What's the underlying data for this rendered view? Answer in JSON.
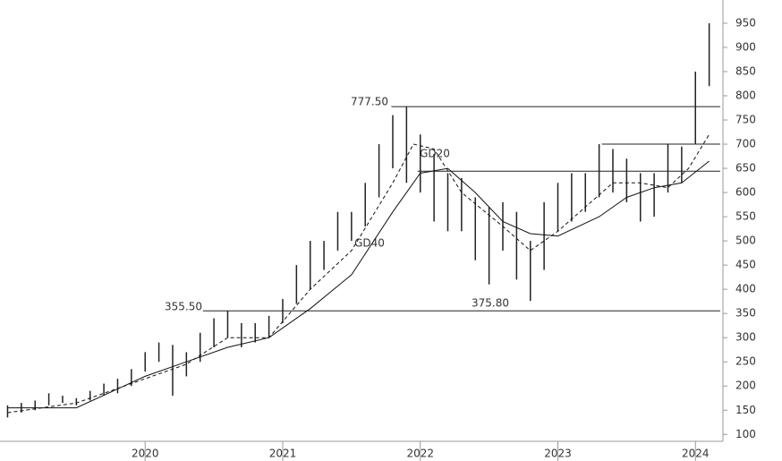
{
  "chart_data": {
    "type": "ohlc",
    "x": [
      2019.0,
      2019.1,
      2019.2,
      2019.3,
      2019.4,
      2019.5,
      2019.6,
      2019.7,
      2019.8,
      2019.9,
      2020.0,
      2020.1,
      2020.2,
      2020.3,
      2020.4,
      2020.5,
      2020.6,
      2020.7,
      2020.8,
      2020.9,
      2021.0,
      2021.1,
      2021.2,
      2021.3,
      2021.4,
      2021.5,
      2021.6,
      2021.7,
      2021.8,
      2021.9,
      2022.0,
      2022.1,
      2022.2,
      2022.3,
      2022.4,
      2022.5,
      2022.6,
      2022.7,
      2022.8,
      2022.9,
      2023.0,
      2023.1,
      2023.2,
      2023.3,
      2023.4,
      2023.5,
      2023.6,
      2023.7,
      2023.8,
      2023.9,
      2024.0,
      2024.1
    ],
    "low": [
      135,
      145,
      150,
      160,
      165,
      160,
      170,
      180,
      185,
      200,
      230,
      250,
      180,
      220,
      250,
      280,
      300,
      280,
      290,
      300,
      330,
      370,
      400,
      440,
      480,
      500,
      530,
      590,
      650,
      620,
      600,
      540,
      520,
      520,
      460,
      410,
      480,
      420,
      375.8,
      440,
      520,
      540,
      560,
      590,
      600,
      580,
      540,
      550,
      600,
      620,
      700,
      820
    ],
    "high": [
      160,
      165,
      170,
      185,
      180,
      175,
      190,
      205,
      215,
      235,
      270,
      290,
      285,
      270,
      310,
      340,
      355.5,
      330,
      330,
      345,
      380,
      450,
      500,
      500,
      560,
      560,
      620,
      700,
      760,
      777.5,
      720,
      680,
      640,
      630,
      590,
      570,
      580,
      560,
      500,
      580,
      620,
      640,
      640,
      700,
      690,
      670,
      640,
      640,
      700,
      695,
      850,
      950
    ],
    "series": [
      {
        "name": "GD20",
        "dashed": true,
        "x": [
          2019.0,
          2019.5,
          2020.0,
          2020.3,
          2020.6,
          2020.9,
          2021.2,
          2021.5,
          2021.8,
          2021.95,
          2022.1,
          2022.3,
          2022.6,
          2022.8,
          2023.0,
          2023.2,
          2023.4,
          2023.6,
          2023.8,
          2023.95,
          2024.1
        ],
        "values": [
          145,
          165,
          215,
          245,
          300,
          300,
          400,
          480,
          620,
          700,
          690,
          600,
          530,
          480,
          520,
          570,
          620,
          620,
          610,
          650,
          720
        ]
      },
      {
        "name": "GD40",
        "dashed": false,
        "x": [
          2019.0,
          2019.5,
          2020.0,
          2020.3,
          2020.6,
          2020.9,
          2021.2,
          2021.5,
          2021.8,
          2022.0,
          2022.2,
          2022.4,
          2022.6,
          2022.8,
          2023.0,
          2023.3,
          2023.5,
          2023.7,
          2023.9,
          2024.1
        ],
        "values": [
          155,
          155,
          220,
          250,
          280,
          300,
          360,
          430,
          560,
          640,
          650,
          600,
          540,
          515,
          510,
          550,
          590,
          610,
          620,
          665
        ]
      }
    ],
    "levels": [
      {
        "value": 355.5,
        "start": 2020.42
      },
      {
        "value": 777.5,
        "start": 2021.79
      },
      {
        "value": 644,
        "start": 2021.98
      },
      {
        "value": 700,
        "start": 2023.32
      }
    ],
    "annotations": [
      "777.50",
      "355.50",
      "375.80",
      "GD20",
      "GD40"
    ],
    "xlim": [
      2018.945,
      2024.2
    ],
    "ylim": [
      45,
      998
    ],
    "xticks": [
      2020,
      2021,
      2022,
      2023,
      2024
    ],
    "yticks": [
      100,
      150,
      200,
      250,
      300,
      350,
      400,
      450,
      500,
      550,
      600,
      650,
      700,
      750,
      800,
      850,
      900,
      950
    ]
  }
}
